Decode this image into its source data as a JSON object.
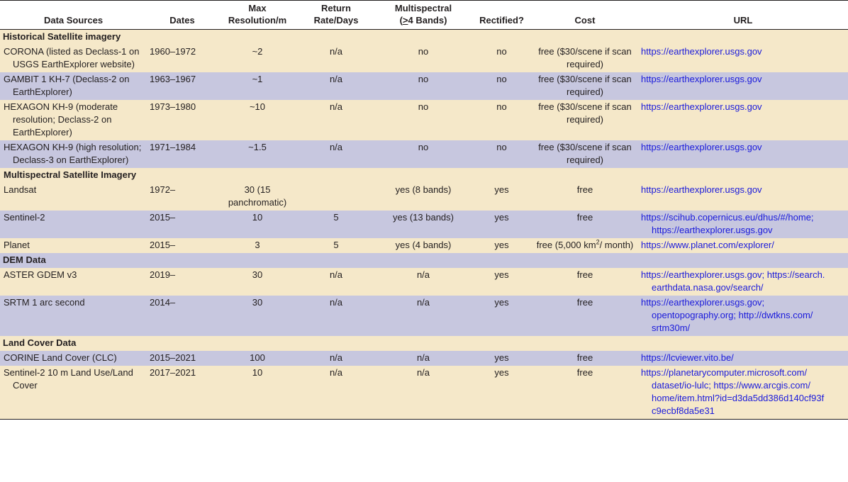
{
  "headers": {
    "source": "Data Sources",
    "dates": "Dates",
    "res_line1": "Max",
    "res_line2": "Resolution/m",
    "ret_line1": "Return",
    "ret_line2": "Rate/Days",
    "ms_line1": "Multispectral",
    "ms_line2_prefix": "(",
    "ms_line2_underlined": ">",
    "ms_line2_suffix": "4 Bands)",
    "rect": "Rectified?",
    "cost": "Cost",
    "url": "URL"
  },
  "sections": {
    "historical": "Historical Satellite imagery",
    "multispectral": "Multispectral Satellite Imagery",
    "dem": "DEM Data",
    "landcover": "Land Cover Data"
  },
  "rows": {
    "corona": {
      "source": "CORONA (listed as Declass-1 on USGS EarthExplorer website)",
      "dates": "1960–1972",
      "res": "~2",
      "ret": "n/a",
      "ms": "no",
      "rect": "no",
      "cost": "free ($30/scene if scan required)",
      "url": "https://earthexplorer.usgs.gov"
    },
    "gambit": {
      "source": "GAMBIT 1 KH-7 (Declass-2 on EarthExplorer)",
      "dates": "1963–1967",
      "res": "~1",
      "ret": "n/a",
      "ms": "no",
      "rect": "no",
      "cost": "free ($30/scene if scan required)",
      "url": "https://earthexplorer.usgs.gov"
    },
    "hexagon_mod": {
      "source": "HEXAGON KH-9 (moderate resolution; Declass-2 on EarthExplorer)",
      "dates": "1973–1980",
      "res": "~10",
      "ret": "n/a",
      "ms": "no",
      "rect": "no",
      "cost": "free ($30/scene if scan required)",
      "url": "https://earthexplorer.usgs.gov"
    },
    "hexagon_high": {
      "source": "HEXAGON KH-9 (high resolution; Declass-3 on EarthExplorer)",
      "dates": "1971–1984",
      "res": "~1.5",
      "ret": "n/a",
      "ms": "no",
      "rect": "no",
      "cost": "free ($30/scene if scan required)",
      "url": "https://earthexplorer.usgs.gov"
    },
    "landsat": {
      "source": "Landsat",
      "dates": "1972–",
      "res": "30 (15 panchromatic)",
      "ret": "",
      "ms": "yes (8 bands)",
      "rect": "yes",
      "cost": "free",
      "url": "https://earthexplorer.usgs.gov"
    },
    "sentinel2": {
      "source": "Sentinel-2",
      "dates": "2015–",
      "res": "10",
      "ret": "5",
      "ms": "yes (13 bands)",
      "rect": "yes",
      "cost": "free",
      "url": "https://scihub.copernicus.eu/dhus/#/home; https://earthexplorer.usgs.gov"
    },
    "planet": {
      "source": "Planet",
      "dates": "2015–",
      "res": "3",
      "ret": "5",
      "ms": "yes (4 bands)",
      "rect": "yes",
      "cost_prefix": "free (5,000 km",
      "cost_sup": "2",
      "cost_suffix": "/ month)",
      "url": "https://www.planet.com/explorer/"
    },
    "aster": {
      "source": "ASTER GDEM v3",
      "dates": "2019–",
      "res": "30",
      "ret": "n/a",
      "ms": "n/a",
      "rect": "yes",
      "cost": "free",
      "url": "https://earthexplorer.usgs.gov; https://search.earthdata.nasa.gov/search/"
    },
    "srtm": {
      "source": "SRTM 1 arc second",
      "dates": "2014–",
      "res": "30",
      "ret": "n/a",
      "ms": "n/a",
      "rect": "yes",
      "cost": "free",
      "url": "https://earthexplorer.usgs.gov; opentopography.org; http://dwtkns.com/srtm30m/"
    },
    "corine": {
      "source": "CORINE Land Cover (CLC)",
      "dates": "2015–2021",
      "res": "100",
      "ret": "n/a",
      "ms": "n/a",
      "rect": "yes",
      "cost": "free",
      "url": "https://lcviewer.vito.be/"
    },
    "sentinel_lulc": {
      "source": "Sentinel-2 10 m Land Use/Land Cover",
      "dates": "2017–2021",
      "res": "10",
      "ret": "n/a",
      "ms": "n/a",
      "rect": "yes",
      "cost": "free",
      "url": "https://planetarycomputer.microsoft.com/dataset/io-lulc; https://www.arcgis.com/home/item.html?id=d3da5dd386d140cf93fc9ecbf8da5e31"
    }
  },
  "url_lines": {
    "sentinel2": [
      "https://scihub.copernicus.eu/dhus/#/home;",
      "https://earthexplorer.usgs.gov"
    ],
    "aster": [
      "https://earthexplorer.usgs.gov; https://search.",
      "earthdata.nasa.gov/search/"
    ],
    "srtm": [
      "https://earthexplorer.usgs.gov;",
      "opentopography.org; http://dwtkns.com/",
      "srtm30m/"
    ],
    "sentinel_lulc": [
      "https://planetarycomputer.microsoft.com/",
      "dataset/io-lulc; https://www.arcgis.com/",
      "home/item.html?id=d3da5dd386d140cf93f",
      "c9ecbf8da5e31"
    ]
  }
}
